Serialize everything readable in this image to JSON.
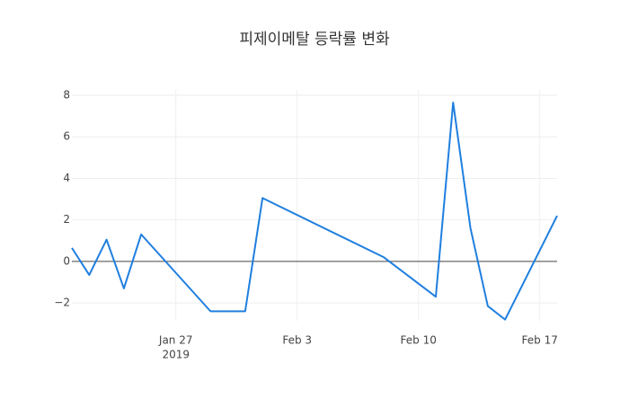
{
  "chart_data": {
    "type": "line",
    "title": "피제이메탈 등락률 변화",
    "x": [
      "2019-01-21",
      "2019-01-22",
      "2019-01-23",
      "2019-01-24",
      "2019-01-25",
      "2019-01-29",
      "2019-01-31",
      "2019-02-01",
      "2019-02-08",
      "2019-02-11",
      "2019-02-12",
      "2019-02-13",
      "2019-02-14",
      "2019-02-15",
      "2019-02-18"
    ],
    "series": [
      {
        "color": "#1f7fdf",
        "values": [
          0.65,
          -0.65,
          1.05,
          -1.3,
          1.3,
          -2.4,
          -2.4,
          3.05,
          0.2,
          -1.7,
          7.65,
          1.6,
          -2.15,
          -2.8,
          2.2
        ]
      }
    ],
    "xlim": [
      "2019-01-21",
      "2019-02-18"
    ],
    "xticks": [
      {
        "value": "2019-01-27",
        "label": "Jan 27"
      },
      {
        "value": "2019-02-03",
        "label": "Feb 3"
      },
      {
        "value": "2019-02-10",
        "label": "Feb 10"
      },
      {
        "value": "2019-02-17",
        "label": "Feb 17"
      }
    ],
    "xtick_year": "2019",
    "ylim": [
      -2.86,
      8.26
    ],
    "yticks": [
      {
        "value": -2,
        "label": "−2"
      },
      0,
      2,
      4,
      6,
      8
    ],
    "grid": true,
    "zeroline": true
  }
}
